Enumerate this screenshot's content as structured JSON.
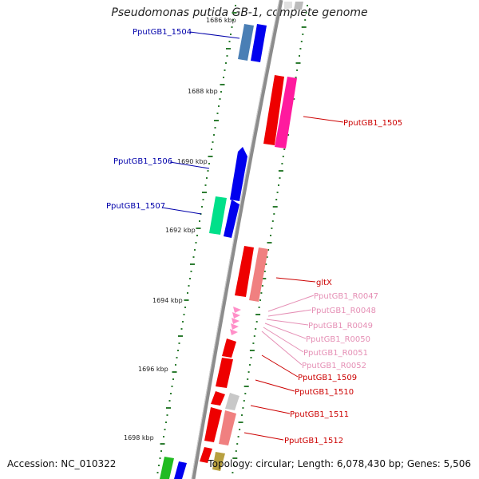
{
  "title": "Pseudomonas putida GB-1, complete genome",
  "accession": "Accession: NC_010322",
  "summary": "Topology: circular; Length: 6,078,430 bp; Genes: 5,506",
  "colors": {
    "backbone": "#8c8c8c",
    "tick": "#2e7d32",
    "gene_label_blue": "#0000aa",
    "gene_label_red": "#cc0000",
    "gene_label_pink": "#e58fb5"
  },
  "kbp_labels": [
    "1686 kbp",
    "1688 kbp",
    "1690 kbp",
    "1692 kbp",
    "1694 kbp",
    "1696 kbp",
    "1698 kbp"
  ],
  "gene_labels": [
    {
      "text": "PputGB1_1504",
      "color": "blue"
    },
    {
      "text": "PputGB1_1505",
      "color": "red"
    },
    {
      "text": "PputGB1_1506",
      "color": "blue"
    },
    {
      "text": "PputGB1_1507",
      "color": "blue"
    },
    {
      "text": "gltX",
      "color": "red"
    },
    {
      "text": "PputGB1_R0047",
      "color": "pink"
    },
    {
      "text": "PputGB1_R0048",
      "color": "pink"
    },
    {
      "text": "PputGB1_R0049",
      "color": "pink"
    },
    {
      "text": "PputGB1_R0050",
      "color": "pink"
    },
    {
      "text": "PputGB1_R0051",
      "color": "pink"
    },
    {
      "text": "PputGB1_R0052",
      "color": "pink"
    },
    {
      "text": "PputGB1_1509",
      "color": "red"
    },
    {
      "text": "PputGB1_1510",
      "color": "red"
    },
    {
      "text": "PputGB1_1511",
      "color": "red"
    },
    {
      "text": "PputGB1_1512",
      "color": "red"
    }
  ]
}
